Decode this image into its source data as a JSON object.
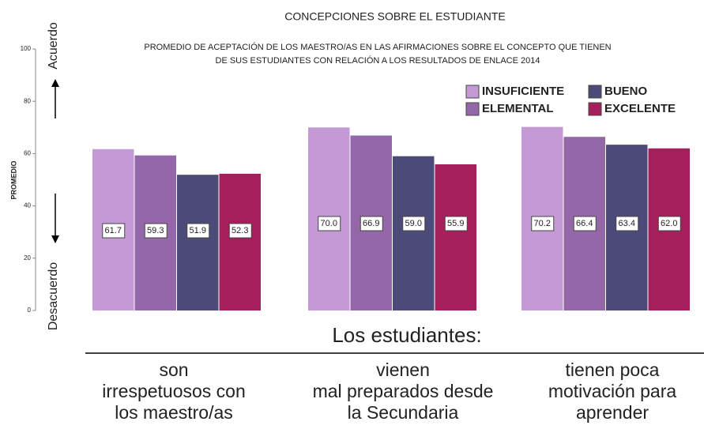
{
  "chart_data": {
    "type": "bar",
    "title": "CONCEPCIONES SOBRE EL ESTUDIANTE",
    "subtitle": [
      "PROMEDIO DE ACEPTACIÓN DE LOS MAESTRO/AS EN LAS AFIRMACIONES SOBRE EL CONCEPTO QUE TIENEN",
      "DE SUS ESTUDIANTES CON RELACIÓN A LOS RESULTADOS DE ENLACE 2014"
    ],
    "y_label": "PROMEDIO",
    "annotations": [
      "Acuerdo",
      "Desacuerdo"
    ],
    "x_label": "Los estudiantes:",
    "categories": [
      [
        "son",
        "irrespetuosos con",
        "los maestro/as"
      ],
      [
        "vienen",
        "mal preparados desde",
        "la Secundaria"
      ],
      [
        "tienen poca",
        "motivación para",
        "aprender"
      ]
    ],
    "series": [
      {
        "name": "INSUFICIENTE",
        "color": "#c49ad6",
        "values": [
          61.7,
          70.0,
          70.2
        ],
        "value_labels": [
          "61.7",
          "70.0",
          "70.2"
        ]
      },
      {
        "name": "ELEMENTAL",
        "color": "#9468a8",
        "values": [
          59.3,
          66.9,
          66.4
        ],
        "value_labels": [
          "59.3",
          "66.9",
          "66.4"
        ]
      },
      {
        "name": "BUENO",
        "color": "#4b4a78",
        "values": [
          51.9,
          59.0,
          63.4
        ],
        "value_labels": [
          "51.9",
          "59.0",
          "63.4"
        ]
      },
      {
        "name": "EXCELENTE",
        "color": "#a3205c",
        "values": [
          52.3,
          55.9,
          62.0
        ],
        "value_labels": [
          "52.3",
          "55.9",
          "62.0"
        ]
      }
    ],
    "ylim": [
      0,
      100
    ],
    "yticks": [
      0,
      20,
      40,
      60,
      80,
      100
    ]
  }
}
